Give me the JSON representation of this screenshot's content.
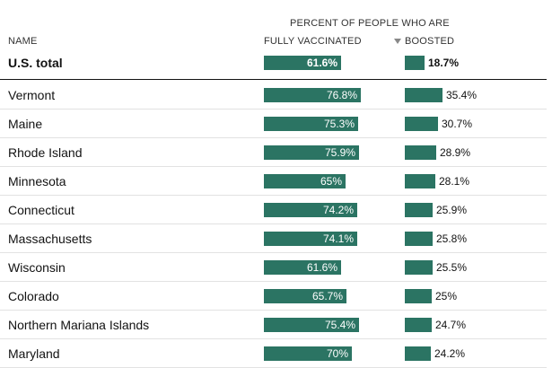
{
  "table": {
    "super_header": "PERCENT OF PEOPLE WHO ARE",
    "col_name": "NAME",
    "col_vacc": "FULLY VACCINATED",
    "col_boost": "BOOSTED",
    "sort_column": "BOOSTED",
    "sort_icon": "sort-descending-triangle-icon",
    "bar_color": "#2b7463"
  },
  "chart_data": {
    "type": "bar",
    "categories": [
      "U.S. total",
      "Vermont",
      "Maine",
      "Rhode Island",
      "Minnesota",
      "Connecticut",
      "Massachusetts",
      "Wisconsin",
      "Colorado",
      "Northern Mariana Islands",
      "Maryland"
    ],
    "series": [
      {
        "name": "FULLY VACCINATED",
        "values": [
          61.6,
          76.8,
          75.3,
          75.9,
          65,
          74.2,
          74.1,
          61.6,
          65.7,
          75.4,
          70
        ],
        "labels": [
          "61.6%",
          "76.8%",
          "75.3%",
          "75.9%",
          "65%",
          "74.2%",
          "74.1%",
          "61.6%",
          "65.7%",
          "75.4%",
          "70%"
        ]
      },
      {
        "name": "BOOSTED",
        "values": [
          18.7,
          35.4,
          30.7,
          28.9,
          28.1,
          25.9,
          25.8,
          25.5,
          25,
          24.7,
          24.2
        ],
        "labels": [
          "18.7%",
          "35.4%",
          "30.7%",
          "28.9%",
          "28.1%",
          "25.9%",
          "25.8%",
          "25.5%",
          "25%",
          "24.7%",
          "24.2%"
        ]
      }
    ]
  }
}
